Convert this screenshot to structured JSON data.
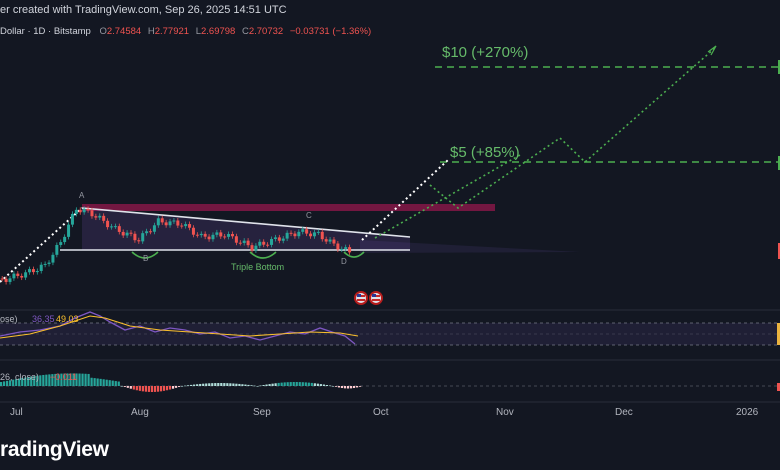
{
  "header": {
    "created_text": "er created with TradingView.com, Sep 26, 2025 14:51 UTC",
    "symbol_text": "Dollar · 1D · Bitstamp",
    "ohlc": {
      "o_label": "O",
      "o_value": "2.74584",
      "h_label": "H",
      "h_value": "2.77921",
      "l_label": "L",
      "l_value": "2.69798",
      "c_label": "C",
      "c_value": "2.70732",
      "change": "−0.03731 (−1.36%)"
    }
  },
  "annotations": {
    "target_10": "$10 (+270%)",
    "target_5": "$5 (+85%)",
    "point_a": "A",
    "point_b": "B",
    "point_c": "C",
    "point_d": "D",
    "pattern": "Triple Bottom"
  },
  "indicators": {
    "rsi_label": "ose)",
    "rsi_value_1": "36.35",
    "rsi_value_2": "49.03",
    "macd_label": "26, close)",
    "macd_value": "−0.011"
  },
  "x_axis": {
    "ticks": [
      "Jul",
      "Aug",
      "Sep",
      "Oct",
      "Nov",
      "Dec",
      "2026"
    ]
  },
  "brand": "radingView",
  "colors": {
    "background": "#131722",
    "up": "#26a69a",
    "down": "#ef5350",
    "target_green": "#4caf50",
    "resistance_band": "#c2185b",
    "rsi_line": "#7e57c2",
    "rsi_signal": "#fbc02d"
  },
  "chart_data": {
    "type": "line",
    "title": "",
    "xlabel": "",
    "ylabel": "",
    "x": [
      "Jul",
      "Aug",
      "Sep",
      "Oct",
      "Nov",
      "Dec",
      "2026"
    ],
    "price_path": [
      {
        "date": "2025-06-20",
        "close": 2.05
      },
      {
        "date": "2025-06-28",
        "close": 2.15
      },
      {
        "date": "2025-07-05",
        "close": 2.3
      },
      {
        "date": "2025-07-10",
        "close": 2.45
      },
      {
        "date": "2025-07-14",
        "close": 2.9
      },
      {
        "date": "2025-07-18",
        "close": 3.55
      },
      {
        "date": "2025-07-22",
        "close": 3.45
      },
      {
        "date": "2025-07-28",
        "close": 3.15
      },
      {
        "date": "2025-08-03",
        "close": 2.95
      },
      {
        "date": "2025-08-08",
        "close": 3.3
      },
      {
        "date": "2025-08-14",
        "close": 3.25
      },
      {
        "date": "2025-08-19",
        "close": 3.0
      },
      {
        "date": "2025-08-25",
        "close": 3.05
      },
      {
        "date": "2025-09-01",
        "close": 2.8
      },
      {
        "date": "2025-09-07",
        "close": 2.95
      },
      {
        "date": "2025-09-13",
        "close": 3.1
      },
      {
        "date": "2025-09-18",
        "close": 3.05
      },
      {
        "date": "2025-09-22",
        "close": 2.85
      },
      {
        "date": "2025-09-26",
        "close": 2.71
      }
    ],
    "projection": [
      {
        "date": "2025-09-26",
        "value": 2.95
      },
      {
        "date": "2025-10-24",
        "value": 5.0
      },
      {
        "date": "2025-11-01",
        "value": 3.5
      },
      {
        "date": "2025-12-15",
        "value": 10.0
      }
    ],
    "targets": [
      {
        "label": "$10 (+270%)",
        "value": 10.0
      },
      {
        "label": "$5 (+85%)",
        "value": 5.0
      }
    ],
    "pattern": "Triple Bottom",
    "grid": false,
    "legend": "none"
  }
}
